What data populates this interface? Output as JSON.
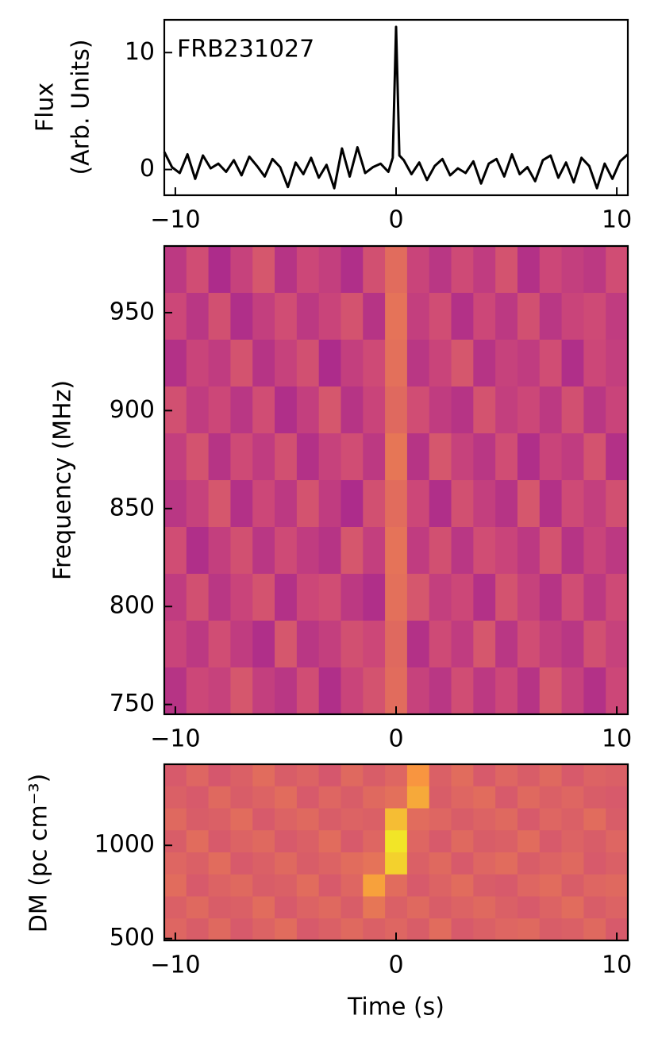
{
  "chart_data": [
    {
      "type": "line",
      "ylabel": [
        "Flux",
        "(Arb. Units)"
      ],
      "annotation": "FRB231027",
      "color": "#000000",
      "x": [
        -10.5,
        -10.15,
        -9.8,
        -9.45,
        -9.1,
        -8.75,
        -8.4,
        -8.05,
        -7.7,
        -7.35,
        -7,
        -6.65,
        -6.3,
        -5.95,
        -5.6,
        -5.25,
        -4.9,
        -4.55,
        -4.2,
        -3.85,
        -3.5,
        -3.15,
        -2.8,
        -2.45,
        -2.1,
        -1.75,
        -1.4,
        -1.05,
        -0.7,
        -0.35,
        -0.15,
        0,
        0.15,
        0.35,
        0.7,
        1.05,
        1.4,
        1.75,
        2.1,
        2.45,
        2.8,
        3.15,
        3.5,
        3.85,
        4.2,
        4.55,
        4.9,
        5.25,
        5.6,
        5.95,
        6.3,
        6.65,
        7,
        7.35,
        7.7,
        8.05,
        8.4,
        8.75,
        9.1,
        9.45,
        9.8,
        10.15,
        10.5
      ],
      "values": [
        1.5,
        0.2,
        -0.3,
        1.3,
        -0.8,
        1.2,
        0.1,
        0.5,
        -0.2,
        0.8,
        -0.5,
        1.1,
        0.3,
        -0.6,
        0.9,
        0.2,
        -1.5,
        0.6,
        -0.4,
        1.0,
        -0.7,
        0.4,
        -1.6,
        1.8,
        -0.6,
        1.9,
        -0.3,
        0.2,
        0.5,
        -0.2,
        1.0,
        12.2,
        1.2,
        0.8,
        -0.4,
        0.6,
        -0.9,
        0.3,
        0.9,
        -0.5,
        0.1,
        -0.3,
        0.7,
        -1.2,
        0.5,
        0.9,
        -0.6,
        1.3,
        -0.4,
        0.2,
        -1.0,
        0.8,
        1.2,
        -0.7,
        0.6,
        -1.1,
        1.0,
        0.3,
        -1.6,
        0.5,
        -0.8,
        0.7,
        1.3
      ],
      "xlim": [
        -10.5,
        10.5
      ],
      "xticks": [
        {
          "value": -10,
          "label": "−10"
        },
        0,
        10
      ],
      "ylim": [
        -2.2,
        12.8
      ],
      "yticks": [
        0,
        10
      ]
    },
    {
      "type": "heatmap",
      "ylabel": "Frequency (MHz)",
      "colormap": "plasma",
      "zlim": [
        0,
        1
      ],
      "xlim": [
        -10.5,
        10.5
      ],
      "xticks": [
        {
          "value": -10,
          "label": "−10"
        },
        0,
        10
      ],
      "ylim": [
        745,
        984
      ],
      "yticks": [
        750,
        800,
        850,
        900,
        950
      ],
      "z": [
        [
          0.45,
          0.52,
          0.4,
          0.48,
          0.55,
          0.43,
          0.5,
          0.47,
          0.41,
          0.53,
          0.62,
          0.49,
          0.44,
          0.51,
          0.46,
          0.54,
          0.42,
          0.5,
          0.47,
          0.45,
          0.52
        ],
        [
          0.5,
          0.44,
          0.53,
          0.41,
          0.47,
          0.52,
          0.45,
          0.49,
          0.54,
          0.43,
          0.64,
          0.47,
          0.52,
          0.42,
          0.5,
          0.45,
          0.53,
          0.44,
          0.49,
          0.51,
          0.46
        ],
        [
          0.42,
          0.49,
          0.46,
          0.54,
          0.43,
          0.48,
          0.53,
          0.4,
          0.47,
          0.51,
          0.63,
          0.44,
          0.49,
          0.55,
          0.43,
          0.48,
          0.46,
          0.52,
          0.41,
          0.5,
          0.47
        ],
        [
          0.53,
          0.46,
          0.5,
          0.44,
          0.52,
          0.41,
          0.47,
          0.55,
          0.43,
          0.49,
          0.61,
          0.52,
          0.46,
          0.43,
          0.54,
          0.47,
          0.5,
          0.45,
          0.53,
          0.44,
          0.49
        ],
        [
          0.47,
          0.54,
          0.43,
          0.51,
          0.46,
          0.53,
          0.42,
          0.48,
          0.52,
          0.45,
          0.65,
          0.43,
          0.55,
          0.48,
          0.44,
          0.52,
          0.41,
          0.49,
          0.46,
          0.54,
          0.42
        ],
        [
          0.44,
          0.48,
          0.55,
          0.42,
          0.5,
          0.45,
          0.54,
          0.46,
          0.4,
          0.53,
          0.62,
          0.5,
          0.41,
          0.53,
          0.47,
          0.43,
          0.55,
          0.42,
          0.51,
          0.47,
          0.53
        ],
        [
          0.52,
          0.41,
          0.47,
          0.53,
          0.44,
          0.51,
          0.46,
          0.43,
          0.55,
          0.47,
          0.64,
          0.46,
          0.53,
          0.44,
          0.52,
          0.49,
          0.45,
          0.54,
          0.43,
          0.49,
          0.45
        ],
        [
          0.46,
          0.53,
          0.44,
          0.49,
          0.54,
          0.42,
          0.5,
          0.52,
          0.45,
          0.41,
          0.63,
          0.55,
          0.47,
          0.5,
          0.42,
          0.54,
          0.48,
          0.43,
          0.52,
          0.45,
          0.51
        ],
        [
          0.49,
          0.45,
          0.52,
          0.46,
          0.41,
          0.55,
          0.44,
          0.47,
          0.53,
          0.5,
          0.61,
          0.42,
          0.51,
          0.46,
          0.55,
          0.44,
          0.52,
          0.47,
          0.44,
          0.53,
          0.48
        ],
        [
          0.43,
          0.5,
          0.48,
          0.55,
          0.47,
          0.44,
          0.52,
          0.41,
          0.49,
          0.54,
          0.62,
          0.48,
          0.44,
          0.52,
          0.45,
          0.5,
          0.43,
          0.55,
          0.48,
          0.42,
          0.5
        ]
      ]
    },
    {
      "type": "heatmap",
      "ylabel": "DM (pc cm⁻³)",
      "xlabel": "Time (s)",
      "colormap": "plasma",
      "zlim": [
        0,
        1
      ],
      "xlim": [
        -10.5,
        10.5
      ],
      "xticks": [
        {
          "value": -10,
          "label": "−10"
        },
        0,
        10
      ],
      "ylim": [
        490,
        1435
      ],
      "yticks": [
        500,
        1000
      ],
      "z": [
        [
          0.56,
          0.6,
          0.55,
          0.58,
          0.62,
          0.57,
          0.59,
          0.55,
          0.61,
          0.57,
          0.6,
          0.75,
          0.58,
          0.62,
          0.56,
          0.6,
          0.57,
          0.61,
          0.56,
          0.59,
          0.58
        ],
        [
          0.58,
          0.56,
          0.61,
          0.57,
          0.59,
          0.62,
          0.56,
          0.6,
          0.57,
          0.61,
          0.63,
          0.8,
          0.57,
          0.6,
          0.62,
          0.56,
          0.61,
          0.58,
          0.6,
          0.57,
          0.56
        ],
        [
          0.61,
          0.57,
          0.58,
          0.62,
          0.56,
          0.59,
          0.61,
          0.57,
          0.59,
          0.58,
          0.85,
          0.62,
          0.6,
          0.57,
          0.59,
          0.61,
          0.56,
          0.6,
          0.58,
          0.62,
          0.57
        ],
        [
          0.57,
          0.62,
          0.56,
          0.59,
          0.61,
          0.56,
          0.58,
          0.62,
          0.56,
          0.6,
          0.95,
          0.6,
          0.56,
          0.61,
          0.57,
          0.58,
          0.62,
          0.56,
          0.59,
          0.57,
          0.6
        ],
        [
          0.6,
          0.58,
          0.62,
          0.56,
          0.58,
          0.61,
          0.57,
          0.59,
          0.62,
          0.64,
          0.9,
          0.58,
          0.61,
          0.56,
          0.6,
          0.62,
          0.57,
          0.59,
          0.61,
          0.56,
          0.58
        ],
        [
          0.62,
          0.56,
          0.59,
          0.61,
          0.57,
          0.58,
          0.62,
          0.56,
          0.6,
          0.78,
          0.62,
          0.56,
          0.59,
          0.62,
          0.57,
          0.56,
          0.6,
          0.62,
          0.57,
          0.6,
          0.61
        ],
        [
          0.58,
          0.61,
          0.57,
          0.58,
          0.62,
          0.56,
          0.59,
          0.61,
          0.57,
          0.65,
          0.58,
          0.61,
          0.57,
          0.59,
          0.61,
          0.58,
          0.56,
          0.59,
          0.62,
          0.57,
          0.59
        ],
        [
          0.6,
          0.57,
          0.61,
          0.56,
          0.59,
          0.62,
          0.56,
          0.58,
          0.61,
          0.58,
          0.6,
          0.57,
          0.62,
          0.56,
          0.58,
          0.6,
          0.61,
          0.57,
          0.58,
          0.61,
          0.56
        ]
      ]
    }
  ]
}
